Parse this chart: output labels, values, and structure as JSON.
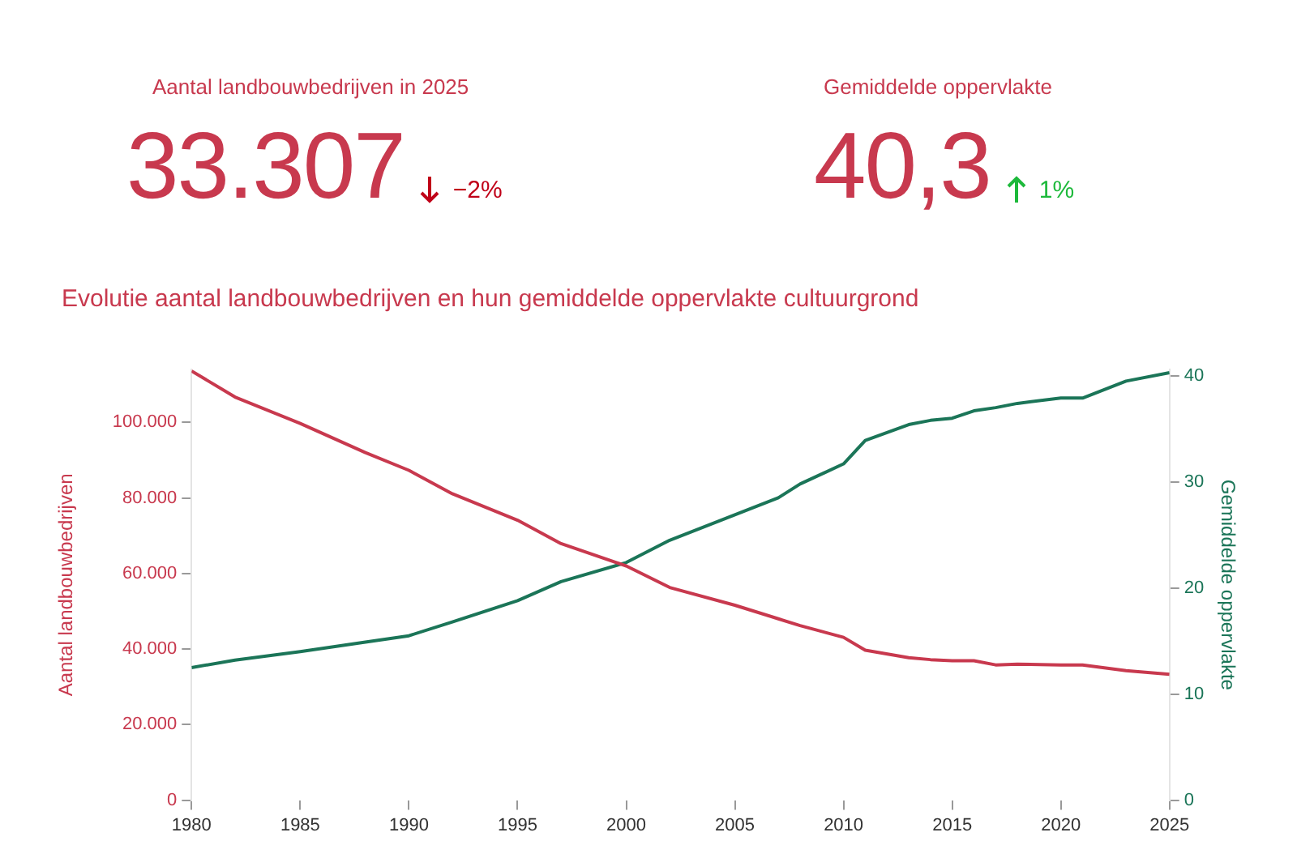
{
  "chart_data": [
    {
      "type": "other",
      "annotations": [
        "Aantal landbouwbedrijven in 2025",
        "33.307",
        "−2%",
        "Gemiddelde oppervlakte",
        "40,3",
        "1%"
      ]
    },
    {
      "type": "line",
      "title": "Evolutie aantal landbouwbedrijven en hun gemiddelde oppervlakte cultuurgrond",
      "ylabel": "Aantal landbouwbedrijven",
      "y2label": "Gemiddelde oppervlakte",
      "x": [
        1980,
        1982,
        1985,
        1988,
        1990,
        1992,
        1995,
        1997,
        2000,
        2002,
        2005,
        2007,
        2008,
        2010,
        2011,
        2013,
        2014,
        2015,
        2016,
        2017,
        2018,
        2020,
        2021,
        2023,
        2025
      ],
      "series": [
        {
          "color": "#c8394e",
          "values": [
            113600,
            106700,
            99700,
            92000,
            87300,
            81100,
            74100,
            67900,
            62000,
            56300,
            51600,
            48000,
            46200,
            43100,
            39700,
            37700,
            37200,
            36900,
            36900,
            35800,
            36000,
            35800,
            35800,
            34300,
            33300
          ]
        },
        {
          "color": "#1b7558",
          "axis": "y2",
          "values": [
            12.5,
            13.2,
            14.0,
            14.9,
            15.5,
            16.8,
            18.8,
            20.6,
            22.4,
            24.5,
            26.9,
            28.5,
            29.8,
            31.7,
            33.9,
            35.4,
            35.8,
            36.0,
            36.7,
            37.0,
            37.4,
            37.9,
            37.9,
            39.5,
            40.3
          ]
        }
      ],
      "xlim": [
        1980,
        2025
      ],
      "xticks": [
        1980,
        1985,
        1990,
        1995,
        2000,
        2005,
        2010,
        2015,
        2020,
        2025
      ],
      "ylim": [
        0,
        114000
      ],
      "yticks": [
        {
          "value": 0,
          "label": "0"
        },
        {
          "value": 20000,
          "label": "20.000"
        },
        {
          "value": 40000,
          "label": "40.000"
        },
        {
          "value": 60000,
          "label": "60.000"
        },
        {
          "value": 80000,
          "label": "80.000"
        },
        {
          "value": 100000,
          "label": "100.000"
        }
      ],
      "y2lim": [
        0,
        40.6
      ],
      "y2ticks": [
        0,
        10,
        20,
        30,
        40
      ],
      "grid": false,
      "legend": false,
      "marker": "none",
      "line_style": "solid"
    }
  ]
}
